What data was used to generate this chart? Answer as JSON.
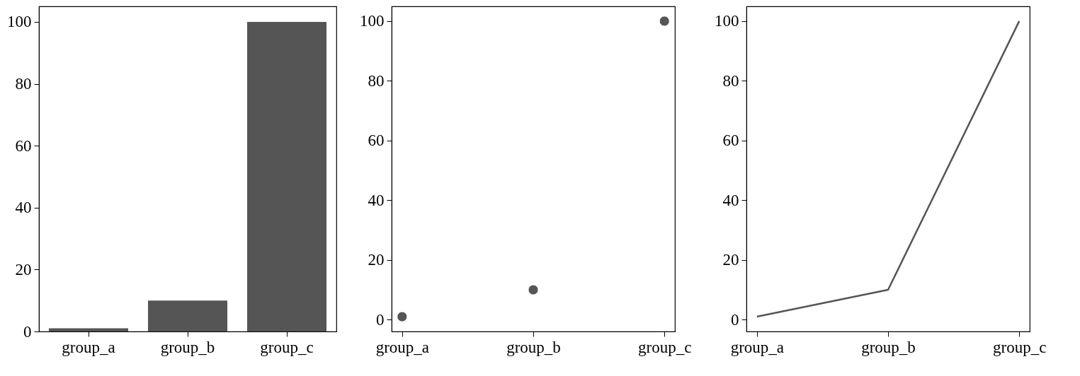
{
  "chart_data": [
    {
      "type": "bar",
      "categories": [
        "group_a",
        "group_b",
        "group_c"
      ],
      "values": [
        1,
        10,
        100
      ],
      "color": "#555555",
      "ylim": [
        0,
        105
      ],
      "yticks": [
        0,
        20,
        40,
        60,
        80,
        100
      ]
    },
    {
      "type": "scatter",
      "categories": [
        "group_a",
        "group_b",
        "group_c"
      ],
      "values": [
        1,
        10,
        100
      ],
      "color": "#555555",
      "marker": "circle",
      "ylim": [
        -3.95,
        104.95
      ],
      "yticks": [
        0,
        20,
        40,
        60,
        80,
        100
      ]
    },
    {
      "type": "line",
      "categories": [
        "group_a",
        "group_b",
        "group_c"
      ],
      "values": [
        1,
        10,
        100
      ],
      "color": "#555555",
      "ylim": [
        -3.95,
        104.95
      ],
      "yticks": [
        0,
        20,
        40,
        60,
        80,
        100
      ]
    }
  ]
}
